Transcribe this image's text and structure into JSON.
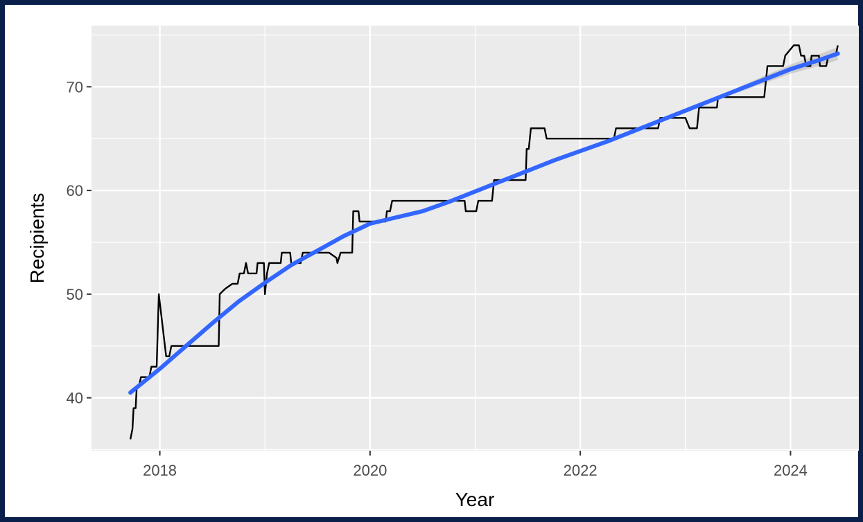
{
  "chart_data": {
    "type": "line",
    "xlabel": "Year",
    "ylabel": "Recipients",
    "xlim": [
      2017.35,
      2024.65
    ],
    "ylim": [
      34.9,
      75.9
    ],
    "x_ticks": [
      2018,
      2020,
      2022,
      2024
    ],
    "y_ticks": [
      40,
      50,
      60,
      70
    ],
    "grid": true,
    "legend": "none",
    "series": [
      {
        "kind": "step-line",
        "color": "#000000",
        "points": [
          [
            2017.72,
            36
          ],
          [
            2017.74,
            37
          ],
          [
            2017.75,
            39
          ],
          [
            2017.77,
            39
          ],
          [
            2017.78,
            41
          ],
          [
            2017.8,
            41
          ],
          [
            2017.82,
            42
          ],
          [
            2017.9,
            42
          ],
          [
            2017.92,
            43
          ],
          [
            2017.97,
            43
          ],
          [
            2017.99,
            50
          ],
          [
            2018.06,
            44
          ],
          [
            2018.09,
            44
          ],
          [
            2018.11,
            45
          ],
          [
            2018.56,
            45
          ],
          [
            2018.57,
            50
          ],
          [
            2018.62,
            50.5
          ],
          [
            2018.69,
            51
          ],
          [
            2018.74,
            51
          ],
          [
            2018.76,
            52
          ],
          [
            2018.8,
            52
          ],
          [
            2018.82,
            53
          ],
          [
            2018.84,
            52
          ],
          [
            2018.92,
            52
          ],
          [
            2018.93,
            53
          ],
          [
            2018.99,
            53
          ],
          [
            2019.0,
            50
          ],
          [
            2019.02,
            52
          ],
          [
            2019.04,
            53
          ],
          [
            2019.15,
            53
          ],
          [
            2019.16,
            54
          ],
          [
            2019.24,
            54
          ],
          [
            2019.25,
            53
          ],
          [
            2019.34,
            53
          ],
          [
            2019.36,
            54
          ],
          [
            2019.61,
            54
          ],
          [
            2019.68,
            53.5
          ],
          [
            2019.69,
            53
          ],
          [
            2019.72,
            54
          ],
          [
            2019.83,
            54
          ],
          [
            2019.84,
            58
          ],
          [
            2019.89,
            58
          ],
          [
            2019.9,
            57
          ],
          [
            2020.15,
            57
          ],
          [
            2020.16,
            58
          ],
          [
            2020.19,
            58
          ],
          [
            2020.21,
            59
          ],
          [
            2020.9,
            59
          ],
          [
            2020.91,
            58
          ],
          [
            2021.01,
            58
          ],
          [
            2021.03,
            59
          ],
          [
            2021.16,
            59
          ],
          [
            2021.18,
            61
          ],
          [
            2021.48,
            61
          ],
          [
            2021.49,
            64
          ],
          [
            2021.51,
            64
          ],
          [
            2021.53,
            66
          ],
          [
            2021.66,
            66
          ],
          [
            2021.68,
            65
          ],
          [
            2022.32,
            65
          ],
          [
            2022.34,
            66
          ],
          [
            2022.74,
            66
          ],
          [
            2022.76,
            67
          ],
          [
            2023.0,
            67
          ],
          [
            2023.02,
            66.5
          ],
          [
            2023.04,
            66
          ],
          [
            2023.11,
            66
          ],
          [
            2023.13,
            68
          ],
          [
            2023.3,
            68
          ],
          [
            2023.31,
            69
          ],
          [
            2023.75,
            69
          ],
          [
            2023.77,
            71
          ],
          [
            2023.78,
            72
          ],
          [
            2023.93,
            72
          ],
          [
            2023.95,
            73
          ],
          [
            2024.03,
            74
          ],
          [
            2024.08,
            74
          ],
          [
            2024.1,
            73
          ],
          [
            2024.13,
            73
          ],
          [
            2024.15,
            72
          ],
          [
            2024.19,
            72
          ],
          [
            2024.2,
            73
          ],
          [
            2024.27,
            73
          ],
          [
            2024.28,
            72
          ],
          [
            2024.34,
            72
          ],
          [
            2024.36,
            73
          ],
          [
            2024.43,
            73
          ],
          [
            2024.45,
            74
          ]
        ]
      },
      {
        "kind": "smooth-trend",
        "color": "#3366ff",
        "points": [
          [
            2017.72,
            40.5
          ],
          [
            2018.0,
            42.8
          ],
          [
            2018.25,
            45.0
          ],
          [
            2018.5,
            47.2
          ],
          [
            2018.75,
            49.3
          ],
          [
            2019.0,
            51.1
          ],
          [
            2019.25,
            52.8
          ],
          [
            2019.5,
            54.2
          ],
          [
            2019.75,
            55.6
          ],
          [
            2020.0,
            56.8
          ],
          [
            2020.25,
            57.4
          ],
          [
            2020.5,
            58.0
          ],
          [
            2020.75,
            58.9
          ],
          [
            2021.0,
            59.9
          ],
          [
            2021.25,
            60.9
          ],
          [
            2021.5,
            61.9
          ],
          [
            2021.75,
            62.9
          ],
          [
            2022.0,
            63.8
          ],
          [
            2022.25,
            64.7
          ],
          [
            2022.5,
            65.7
          ],
          [
            2022.75,
            66.7
          ],
          [
            2023.0,
            67.7
          ],
          [
            2023.25,
            68.7
          ],
          [
            2023.5,
            69.7
          ],
          [
            2023.75,
            70.7
          ],
          [
            2024.0,
            71.7
          ],
          [
            2024.25,
            72.5
          ],
          [
            2024.45,
            73.2
          ]
        ]
      }
    ]
  }
}
